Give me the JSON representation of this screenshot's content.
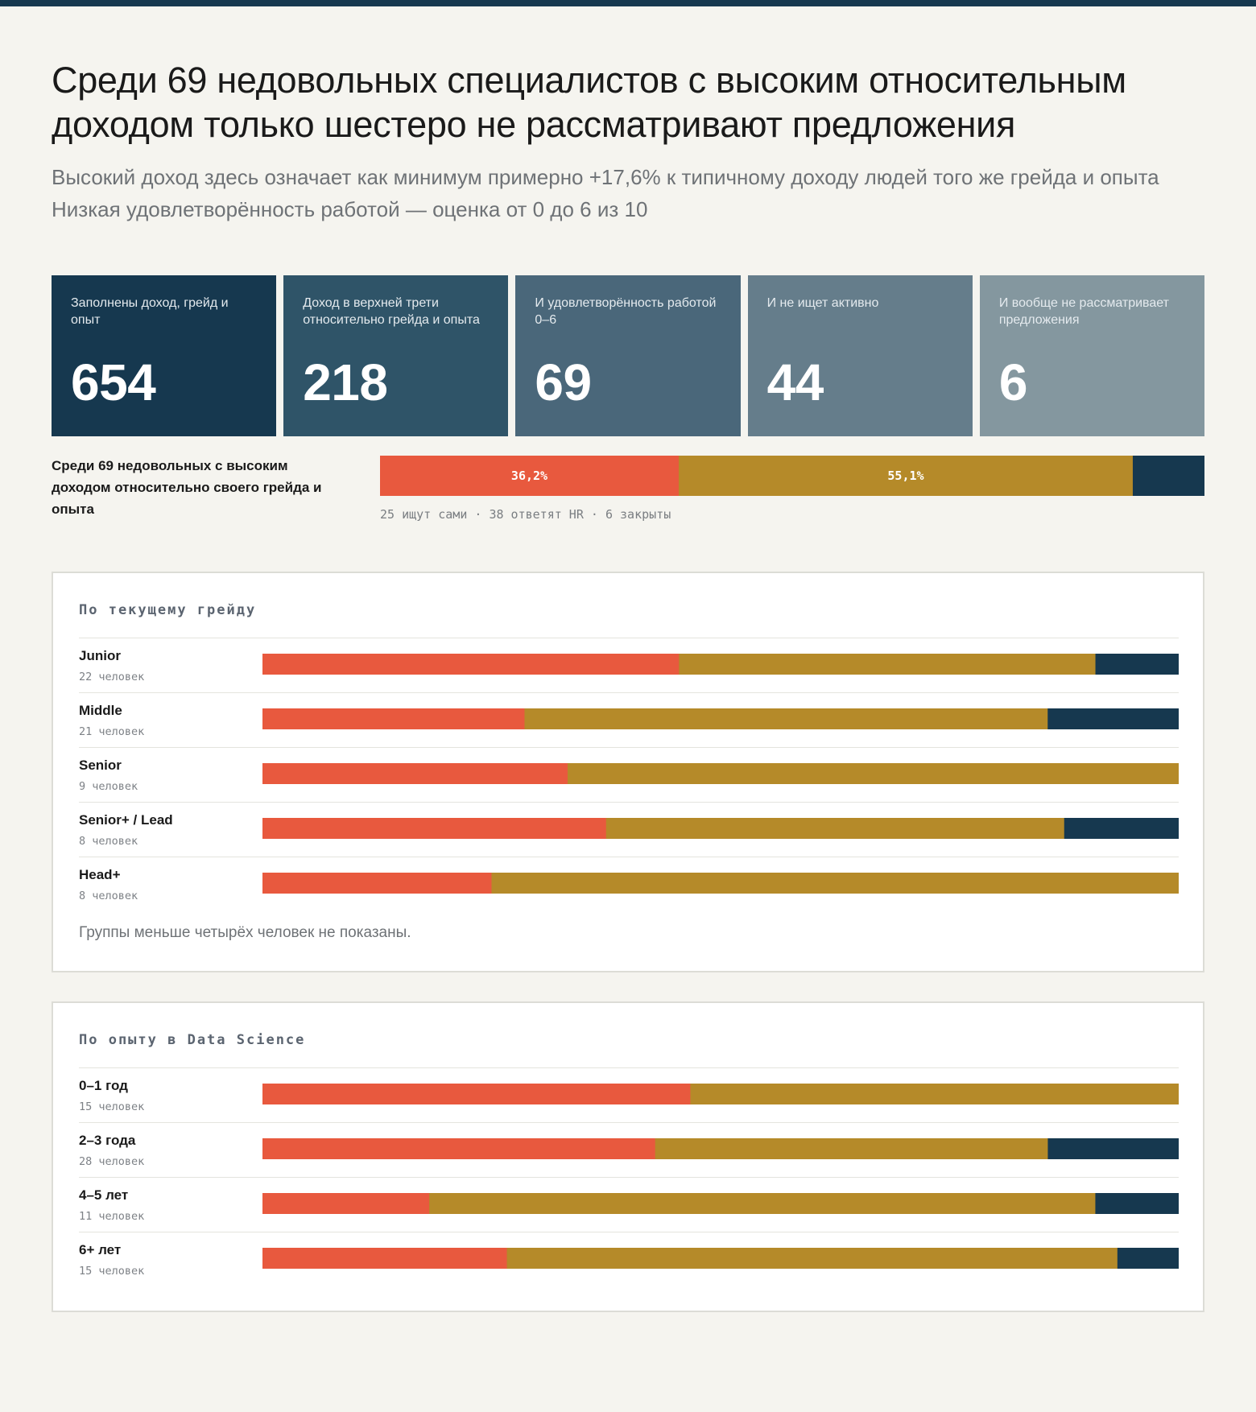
{
  "header": {
    "title_line1": "Среди 69 недовольных специалистов с высоким относительным",
    "title_line2": "доходом только шестеро не рассматривают предложения",
    "subtitle1": "Высокий доход здесь означает как минимум примерно +17,6% к типичному доходу людей того же грейда и опыта",
    "subtitle2": "Низкая удовлетворённость работой — оценка от 0 до 6 из 10"
  },
  "kpis": [
    {
      "label": "Заполнены доход, грейд и опыт",
      "value": "654",
      "color": "#16384f"
    },
    {
      "label": "Доход в верхней трети относительно грейда и опыта",
      "value": "218",
      "color": "#2f5468"
    },
    {
      "label": "И удовлетворённость работой 0–6",
      "value": "69",
      "color": "#4a677a"
    },
    {
      "label": "И не ищет активно",
      "value": "44",
      "color": "#657d8b"
    },
    {
      "label": "И вообще не рассматривает предложения",
      "value": "6",
      "color": "#84979f"
    }
  ],
  "summary": {
    "label": "Среди 69 недовольных с высоким доходом относительно своего грейда и опыта",
    "caption": "25 ищут сами · 38 ответят HR · 6 закрыты",
    "segment_labels": [
      "36,2%",
      "55,1%",
      ""
    ]
  },
  "colors": {
    "seeking": "#e8593e",
    "hr": "#b58a29",
    "closed": "#16384f"
  },
  "chart_data": [
    {
      "type": "bar",
      "stacked": true,
      "orientation": "horizontal",
      "title": "",
      "categories": [
        "Среди 69 недовольных с высоким доходом относительно своего грейда и опыта"
      ],
      "series": [
        {
          "values": [
            25
          ]
        },
        {
          "values": [
            38
          ]
        },
        {
          "values": [
            6
          ]
        }
      ],
      "data_labels": [
        "36,2%",
        "55,1%",
        ""
      ]
    },
    {
      "type": "bar",
      "stacked": true,
      "orientation": "horizontal",
      "title": "По текущему грейду",
      "categories": [
        "Junior",
        "Middle",
        "Senior",
        "Senior+ / Lead",
        "Head+"
      ],
      "counts": [
        "22 человек",
        "21 человек",
        "9 человек",
        "8 человек",
        "8 человек"
      ],
      "series": [
        {
          "values": [
            45.5,
            28.6,
            33.3,
            37.5,
            25.0
          ]
        },
        {
          "values": [
            45.5,
            57.1,
            66.7,
            50.0,
            75.0
          ]
        },
        {
          "values": [
            9.1,
            14.3,
            0,
            12.5,
            0
          ]
        }
      ],
      "note": "Группы меньше четырёх человек не показаны."
    },
    {
      "type": "bar",
      "stacked": true,
      "orientation": "horizontal",
      "title": "По опыту в Data Science",
      "categories": [
        "0–1 год",
        "2–3 года",
        "4–5 лет",
        "6+ лет"
      ],
      "counts": [
        "15 человек",
        "28 человек",
        "11 человек",
        "15 человек"
      ],
      "series": [
        {
          "values": [
            46.7,
            42.9,
            18.2,
            26.7
          ]
        },
        {
          "values": [
            53.3,
            42.9,
            72.7,
            66.7
          ]
        },
        {
          "values": [
            0,
            14.3,
            9.1,
            6.7
          ]
        }
      ]
    }
  ]
}
